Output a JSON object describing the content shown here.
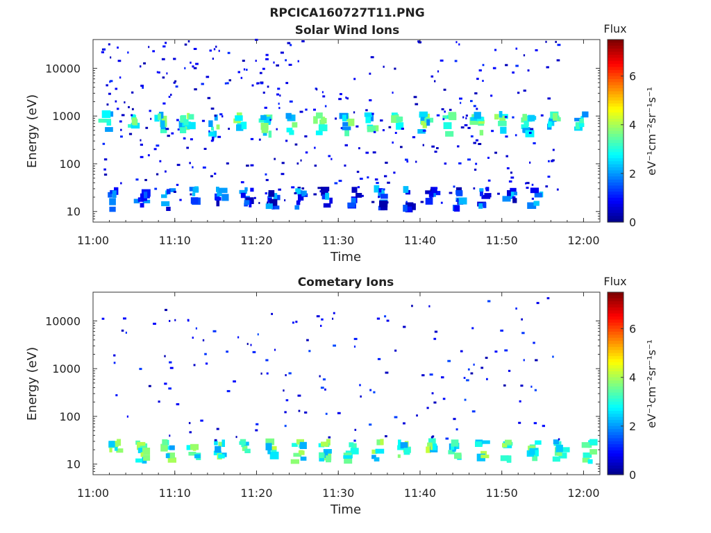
{
  "figure": {
    "title": "RPCICA160727T11.PNG"
  },
  "chart_data": [
    {
      "type": "heatmap",
      "title": "Solar Wind Ions",
      "xlabel": "Time",
      "ylabel": "Energy (eV)",
      "x_ticks": [
        "11:00",
        "11:10",
        "11:20",
        "11:30",
        "11:40",
        "11:50",
        "12:00"
      ],
      "x_range": [
        "11:00",
        "12:02"
      ],
      "y_scale": "log",
      "y_ticks": [
        "10",
        "100",
        "1000",
        "10000"
      ],
      "y_range": [
        6,
        40000
      ],
      "colorbar": {
        "title": "Flux",
        "label": "eV⁻¹cm⁻²sr⁻¹s⁻¹",
        "ticks": [
          "0",
          "2",
          "4",
          "6"
        ],
        "range": [
          0,
          7.5
        ],
        "colormap": "jet"
      },
      "grid": false,
      "bands": [
        {
          "energy": 750,
          "value": 3.0,
          "times": [
            1.5,
            4.6,
            8.0,
            11.2,
            14.6,
            17.8,
            21.0,
            24.2,
            27.5,
            30.8,
            34.0,
            37.2,
            40.4,
            43.5,
            46.7,
            49.7,
            53.0,
            56.0,
            59.5
          ]
        },
        {
          "energy": 20,
          "value": 1.4,
          "times": [
            2.2,
            5.7,
            9.0,
            12.3,
            15.4,
            18.7,
            21.9,
            25.1,
            28.4,
            31.7,
            35.0,
            38.1,
            41.3,
            44.4,
            47.6,
            50.8,
            54.0
          ]
        }
      ],
      "scatter_energy_range": [
        15,
        40000
      ],
      "scatter_value_range": [
        0.3,
        1.3
      ],
      "scatter_count": 360
    },
    {
      "type": "heatmap",
      "title": "Cometary Ions",
      "xlabel": "Time",
      "ylabel": "Energy (eV)",
      "x_ticks": [
        "11:00",
        "11:10",
        "11:20",
        "11:30",
        "11:40",
        "11:50",
        "12:00"
      ],
      "x_range": [
        "11:00",
        "12:02"
      ],
      "y_scale": "log",
      "y_ticks": [
        "10",
        "100",
        "1000",
        "10000"
      ],
      "y_range": [
        6,
        40000
      ],
      "colorbar": {
        "title": "Flux",
        "label": "eV⁻¹cm⁻²sr⁻¹s⁻¹",
        "ticks": [
          "0",
          "2",
          "4",
          "6"
        ],
        "range": [
          0,
          7.5
        ],
        "colormap": "jet"
      },
      "grid": false,
      "bands": [
        {
          "energy": 20,
          "value": 3.2,
          "times": [
            2.5,
            5.8,
            9.0,
            12.1,
            15.3,
            18.6,
            21.8,
            25.0,
            28.2,
            31.3,
            34.6,
            37.8,
            41.0,
            44.2,
            47.4,
            50.6,
            53.8,
            57.0,
            60.5
          ]
        }
      ],
      "scatter_energy_range": [
        30,
        30000
      ],
      "scatter_value_range": [
        0.3,
        1.5
      ],
      "scatter_count": 150
    }
  ]
}
